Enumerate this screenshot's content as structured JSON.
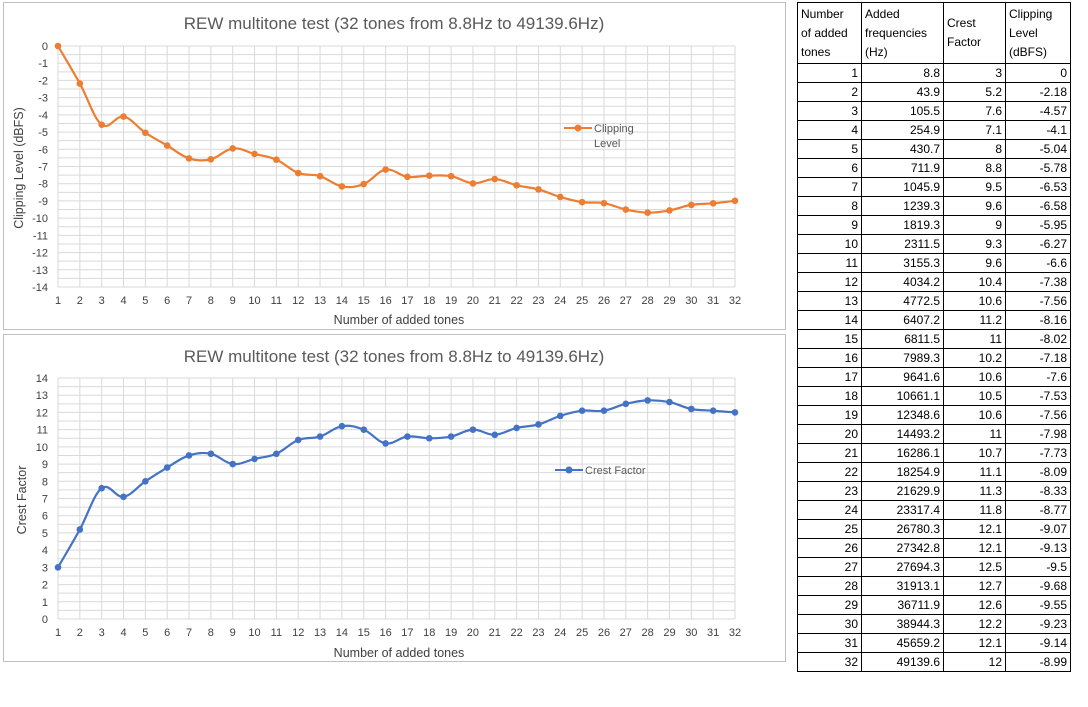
{
  "chart_data": [
    {
      "type": "line",
      "title": "REW multitone test (32 tones from 8.8Hz to 49139.6Hz)",
      "xlabel": "Number of added tones",
      "ylabel": "Clipping Level (dBFS)",
      "x": [
        1,
        2,
        3,
        4,
        5,
        6,
        7,
        8,
        9,
        10,
        11,
        12,
        13,
        14,
        15,
        16,
        17,
        18,
        19,
        20,
        21,
        22,
        23,
        24,
        25,
        26,
        27,
        28,
        29,
        30,
        31,
        32
      ],
      "ylim": [
        -14,
        0
      ],
      "yticks": [
        0,
        -1,
        -2,
        -3,
        -4,
        -5,
        -6,
        -7,
        -8,
        -9,
        -10,
        -11,
        -12,
        -13,
        -14
      ],
      "grid": true,
      "legend_position": "right",
      "series": [
        {
          "name": "Clipping Level",
          "color": "#ed7d31",
          "values": [
            0,
            -2.18,
            -4.57,
            -4.1,
            -5.04,
            -5.78,
            -6.53,
            -6.58,
            -5.95,
            -6.27,
            -6.6,
            -7.38,
            -7.56,
            -8.16,
            -8.02,
            -7.18,
            -7.6,
            -7.53,
            -7.56,
            -7.98,
            -7.73,
            -8.09,
            -8.33,
            -8.77,
            -9.07,
            -9.13,
            -9.5,
            -9.68,
            -9.55,
            -9.23,
            -9.14,
            -8.99
          ]
        }
      ]
    },
    {
      "type": "line",
      "title": "REW multitone test (32 tones from 8.8Hz to 49139.6Hz)",
      "xlabel": "Number of added tones",
      "ylabel": "Crest Factor",
      "x": [
        1,
        2,
        3,
        4,
        5,
        6,
        7,
        8,
        9,
        10,
        11,
        12,
        13,
        14,
        15,
        16,
        17,
        18,
        19,
        20,
        21,
        22,
        23,
        24,
        25,
        26,
        27,
        28,
        29,
        30,
        31,
        32
      ],
      "ylim": [
        0,
        14
      ],
      "yticks": [
        0,
        1,
        2,
        3,
        4,
        5,
        6,
        7,
        8,
        9,
        10,
        11,
        12,
        13,
        14
      ],
      "grid": true,
      "legend_position": "right",
      "series": [
        {
          "name": "Crest Factor",
          "color": "#4472c4",
          "values": [
            3,
            5.2,
            7.6,
            7.1,
            8,
            8.8,
            9.5,
            9.6,
            9,
            9.3,
            9.6,
            10.4,
            10.6,
            11.2,
            11,
            10.2,
            10.6,
            10.5,
            10.6,
            11,
            10.7,
            11.1,
            11.3,
            11.8,
            12.1,
            12.1,
            12.5,
            12.7,
            12.6,
            12.2,
            12.1,
            12
          ]
        }
      ]
    }
  ],
  "table": {
    "headers": [
      "Number of added tones",
      "Added frequencies (Hz)",
      "Crest Factor",
      "Clipping Level (dBFS)"
    ],
    "header_lines": [
      [
        "Number",
        "of added",
        "tones"
      ],
      [
        "Added",
        "frequencies",
        "(Hz)"
      ],
      [
        "Crest",
        "Factor"
      ],
      [
        "Clipping",
        "Level",
        "(dBFS)"
      ]
    ],
    "rows": [
      [
        "1",
        "8.8",
        "3",
        "0"
      ],
      [
        "2",
        "43.9",
        "5.2",
        "-2.18"
      ],
      [
        "3",
        "105.5",
        "7.6",
        "-4.57"
      ],
      [
        "4",
        "254.9",
        "7.1",
        "-4.1"
      ],
      [
        "5",
        "430.7",
        "8",
        "-5.04"
      ],
      [
        "6",
        "711.9",
        "8.8",
        "-5.78"
      ],
      [
        "7",
        "1045.9",
        "9.5",
        "-6.53"
      ],
      [
        "8",
        "1239.3",
        "9.6",
        "-6.58"
      ],
      [
        "9",
        "1819.3",
        "9",
        "-5.95"
      ],
      [
        "10",
        "2311.5",
        "9.3",
        "-6.27"
      ],
      [
        "11",
        "3155.3",
        "9.6",
        "-6.6"
      ],
      [
        "12",
        "4034.2",
        "10.4",
        "-7.38"
      ],
      [
        "13",
        "4772.5",
        "10.6",
        "-7.56"
      ],
      [
        "14",
        "6407.2",
        "11.2",
        "-8.16"
      ],
      [
        "15",
        "6811.5",
        "11",
        "-8.02"
      ],
      [
        "16",
        "7989.3",
        "10.2",
        "-7.18"
      ],
      [
        "17",
        "9641.6",
        "10.6",
        "-7.6"
      ],
      [
        "18",
        "10661.1",
        "10.5",
        "-7.53"
      ],
      [
        "19",
        "12348.6",
        "10.6",
        "-7.56"
      ],
      [
        "20",
        "14493.2",
        "11",
        "-7.98"
      ],
      [
        "21",
        "16286.1",
        "10.7",
        "-7.73"
      ],
      [
        "22",
        "18254.9",
        "11.1",
        "-8.09"
      ],
      [
        "23",
        "21629.9",
        "11.3",
        "-8.33"
      ],
      [
        "24",
        "23317.4",
        "11.8",
        "-8.77"
      ],
      [
        "25",
        "26780.3",
        "12.1",
        "-9.07"
      ],
      [
        "26",
        "27342.8",
        "12.1",
        "-9.13"
      ],
      [
        "27",
        "27694.3",
        "12.5",
        "-9.5"
      ],
      [
        "28",
        "31913.1",
        "12.7",
        "-9.68"
      ],
      [
        "29",
        "36711.9",
        "12.6",
        "-9.55"
      ],
      [
        "30",
        "38944.3",
        "12.2",
        "-9.23"
      ],
      [
        "31",
        "45659.2",
        "12.1",
        "-9.14"
      ],
      [
        "32",
        "49139.6",
        "12",
        "-8.99"
      ]
    ]
  }
}
